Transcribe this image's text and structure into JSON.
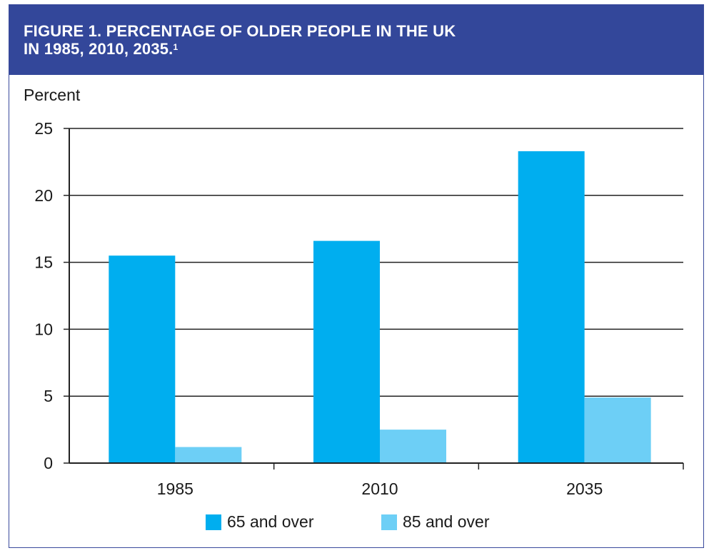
{
  "header": {
    "title_line1": "FIGURE 1. PERCENTAGE OF OLDER PEOPLE IN THE UK",
    "title_line2": "IN 1985, 2010, 2035.",
    "footnote_mark": "1"
  },
  "colors": {
    "header_bg": "#33479a",
    "series_65": "#00aeef",
    "series_85": "#6dcff6"
  },
  "chart_data": {
    "type": "bar",
    "title": "FIGURE 1. PERCENTAGE OF OLDER PEOPLE IN THE UK IN 1985, 2010, 2035.",
    "ylabel": "Percent",
    "xlabel": "",
    "categories": [
      "1985",
      "2010",
      "2035"
    ],
    "series": [
      {
        "name": "65 and over",
        "values": [
          15.5,
          16.6,
          23.3
        ]
      },
      {
        "name": "85 and over",
        "values": [
          1.2,
          2.5,
          4.9
        ]
      }
    ],
    "ylim": [
      0,
      25
    ],
    "yticks": [
      "0",
      "5",
      "10",
      "15",
      "20",
      "25"
    ],
    "grid": true,
    "legend": "bottom-center"
  }
}
